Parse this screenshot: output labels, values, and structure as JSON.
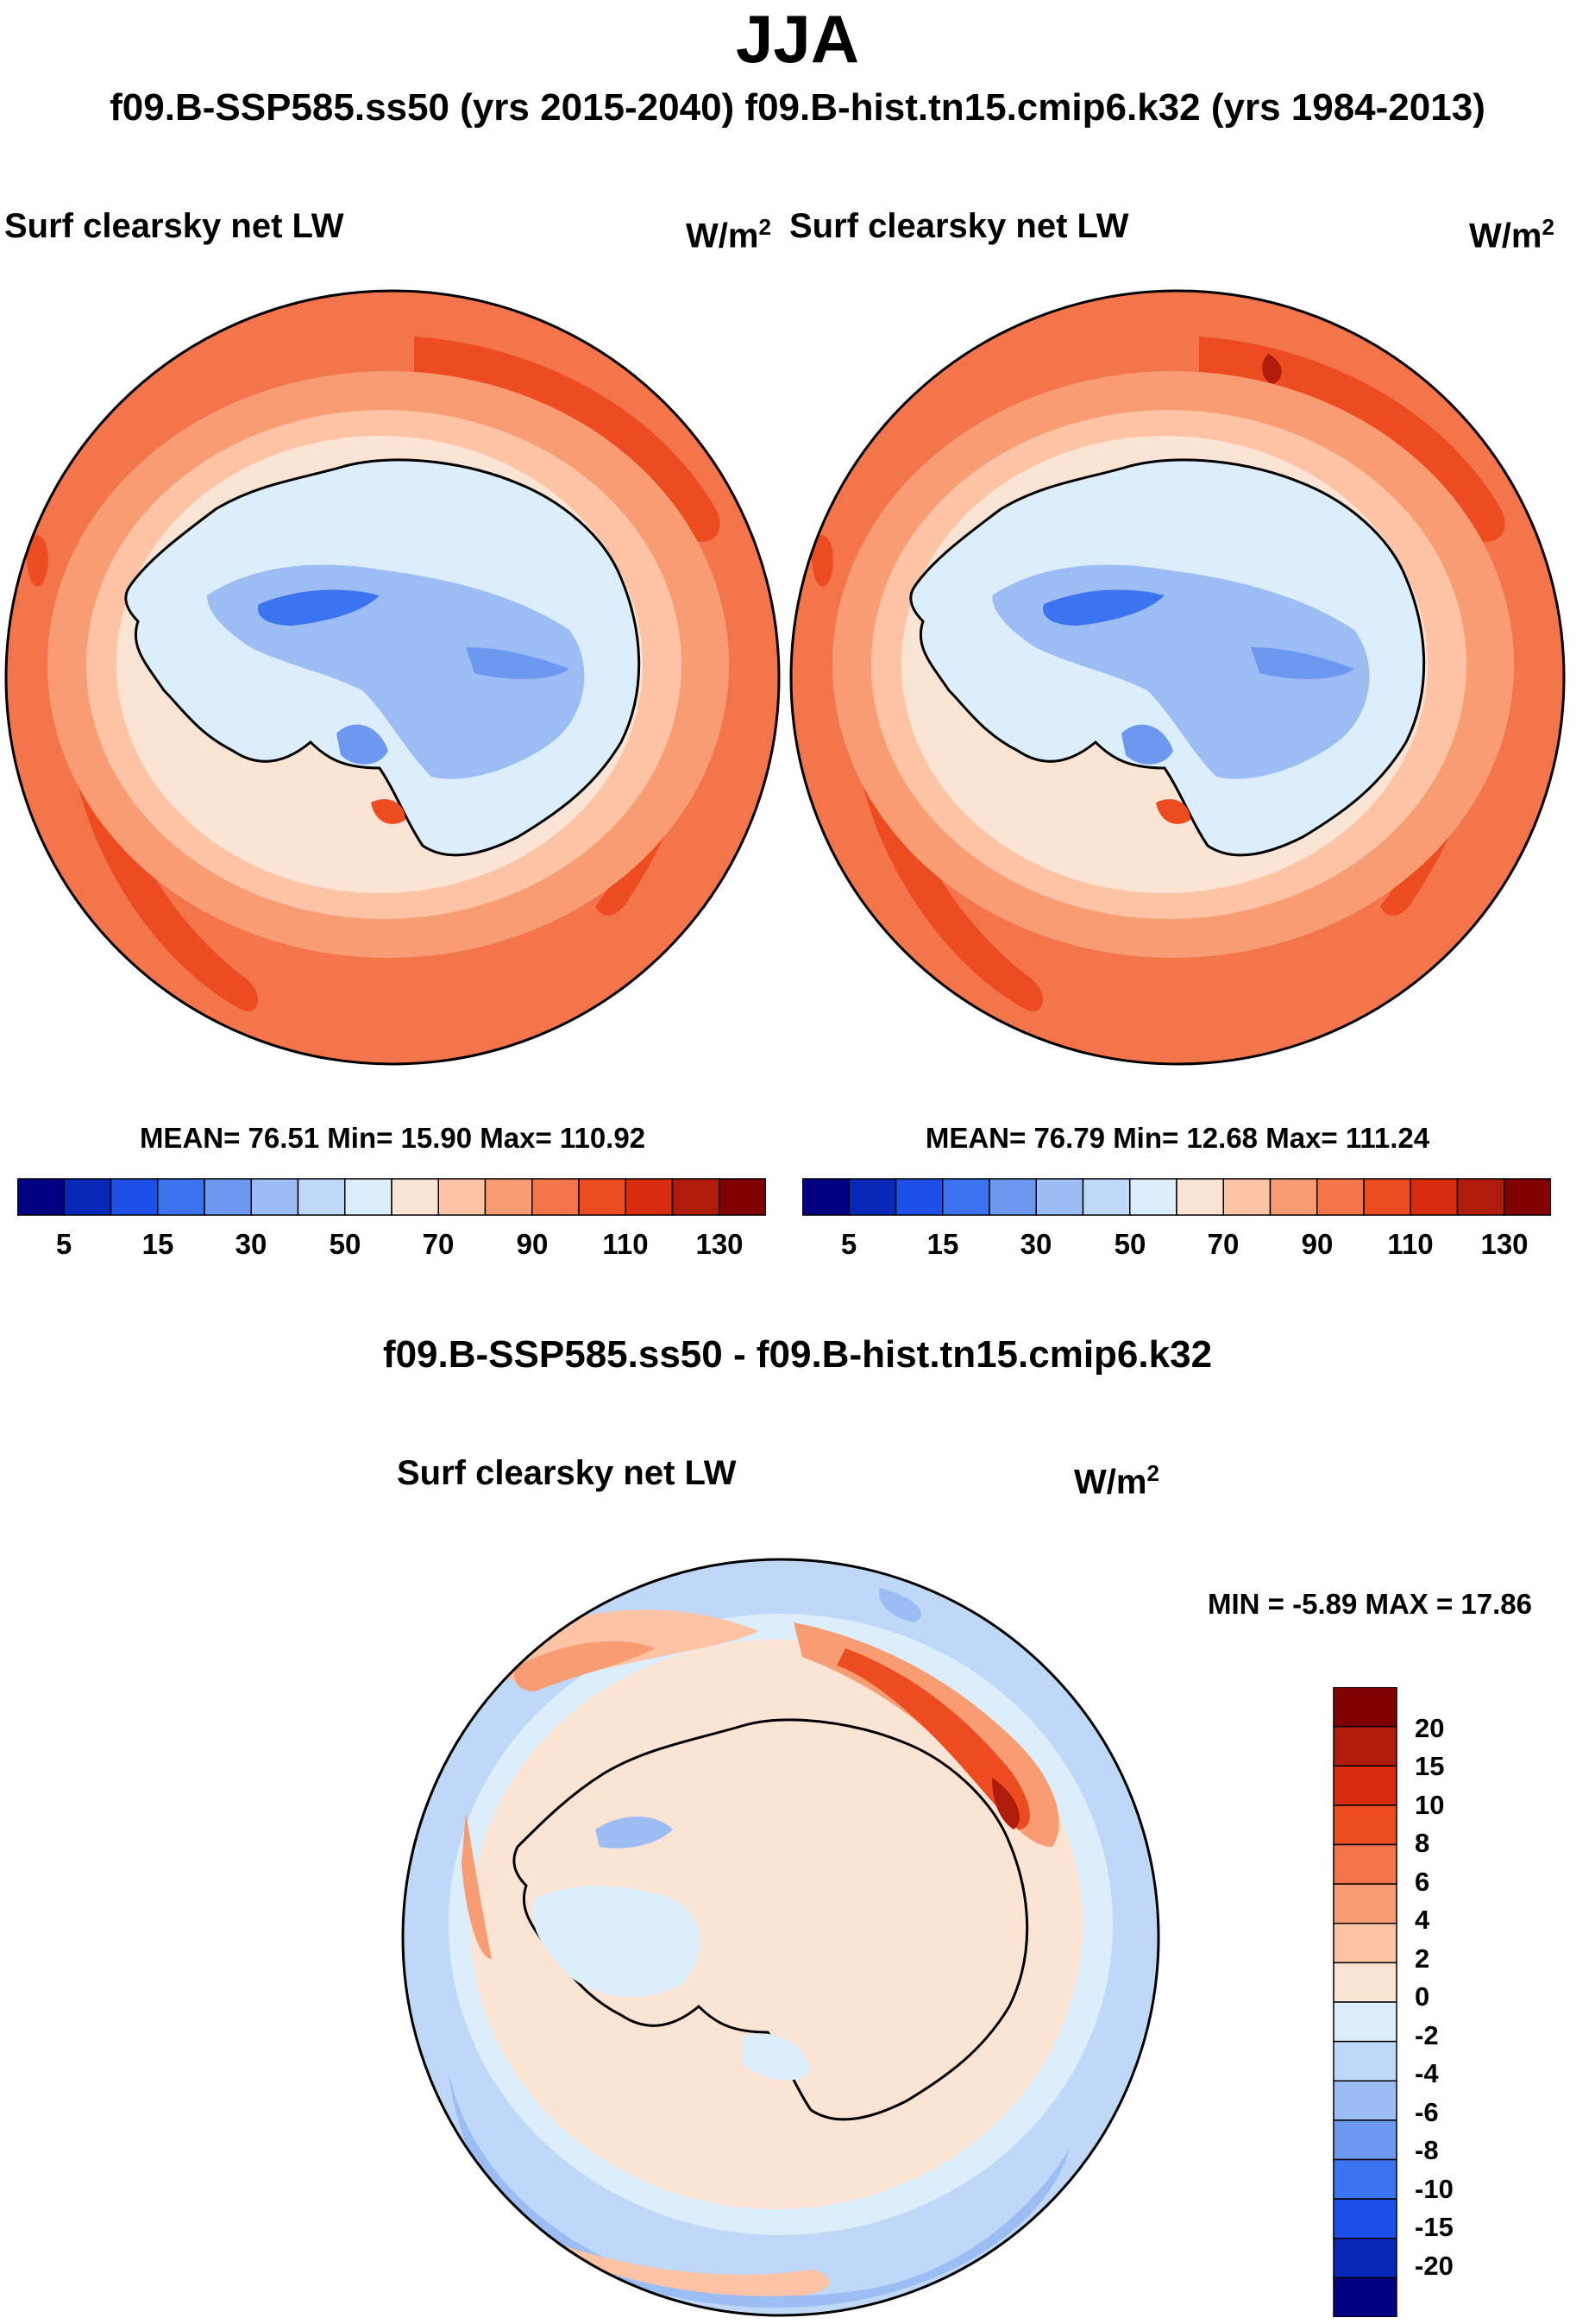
{
  "figure": {
    "title": "JJA",
    "subtitle": "f09.B-SSP585.ss50 (yrs 2015-2040)  f09.B-hist.tn15.cmip6.k32 (yrs 1984-2013)"
  },
  "panels": [
    {
      "variable": "Surf clearsky net LW",
      "units_base": "W/m",
      "units_exp": "2",
      "stats": "MEAN=  76.51  Min=  15.90  Max= 110.92"
    },
    {
      "variable": "Surf clearsky net LW",
      "units_base": "W/m",
      "units_exp": "2",
      "stats": "MEAN=  76.79  Min=  12.68  Max= 111.24"
    }
  ],
  "colorbar_top": {
    "labels": [
      "5",
      "15",
      "30",
      "50",
      "70",
      "90",
      "110",
      "130"
    ],
    "colors": [
      "#000080",
      "#0828b8",
      "#1c50e8",
      "#3c74f0",
      "#6c98f0",
      "#9cbcf4",
      "#c0d8f8",
      "#dceefc",
      "#fce4d4",
      "#fcc4a4",
      "#f89c74",
      "#f4744c",
      "#ec4c20",
      "#d82c10",
      "#b01c0c",
      "#800000"
    ]
  },
  "difference": {
    "title": "f09.B-SSP585.ss50 - f09.B-hist.tn15.cmip6.k32",
    "variable": "Surf clearsky net LW",
    "units_base": "W/m",
    "units_exp": "2",
    "stats": "MIN =  -5.89 MAX =  17.86",
    "colorbar": {
      "labels": [
        "20",
        "15",
        "10",
        "8",
        "6",
        "4",
        "2",
        "0",
        "-2",
        "-4",
        "-6",
        "-8",
        "-10",
        "-15",
        "-20"
      ],
      "colors": [
        "#800000",
        "#b01c0c",
        "#d82c10",
        "#ec4c20",
        "#f4744c",
        "#f89c74",
        "#fcc4a4",
        "#fce4d4",
        "#dceefc",
        "#c0d8f8",
        "#9cbcf4",
        "#6c98f0",
        "#3c74f0",
        "#1c50e8",
        "#0828b8",
        "#000080"
      ]
    }
  }
}
